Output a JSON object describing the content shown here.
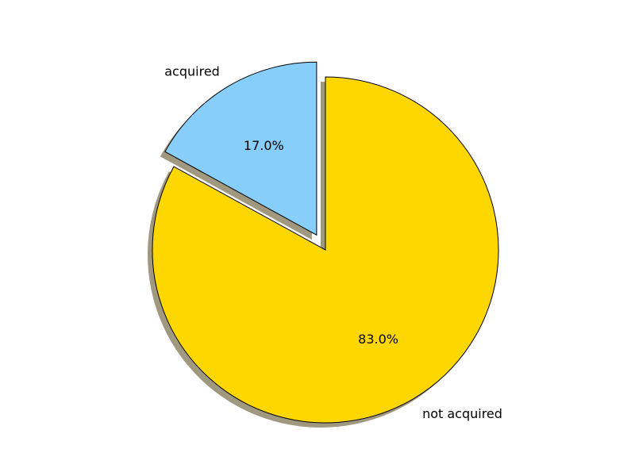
{
  "chart_data": {
    "type": "pie",
    "title": "",
    "start_angle_deg": 90,
    "direction": "counterclockwise",
    "shadow": true,
    "slices": [
      {
        "label": "acquired",
        "value": 17.0,
        "percent_label": "17.0%",
        "color": "#87CEFA",
        "exploded": true
      },
      {
        "label": "not acquired",
        "value": 83.0,
        "percent_label": "83.0%",
        "color": "#FFD700",
        "exploded": false
      }
    ],
    "edge_color": "#000000",
    "shadow_color": "#9c9478"
  }
}
